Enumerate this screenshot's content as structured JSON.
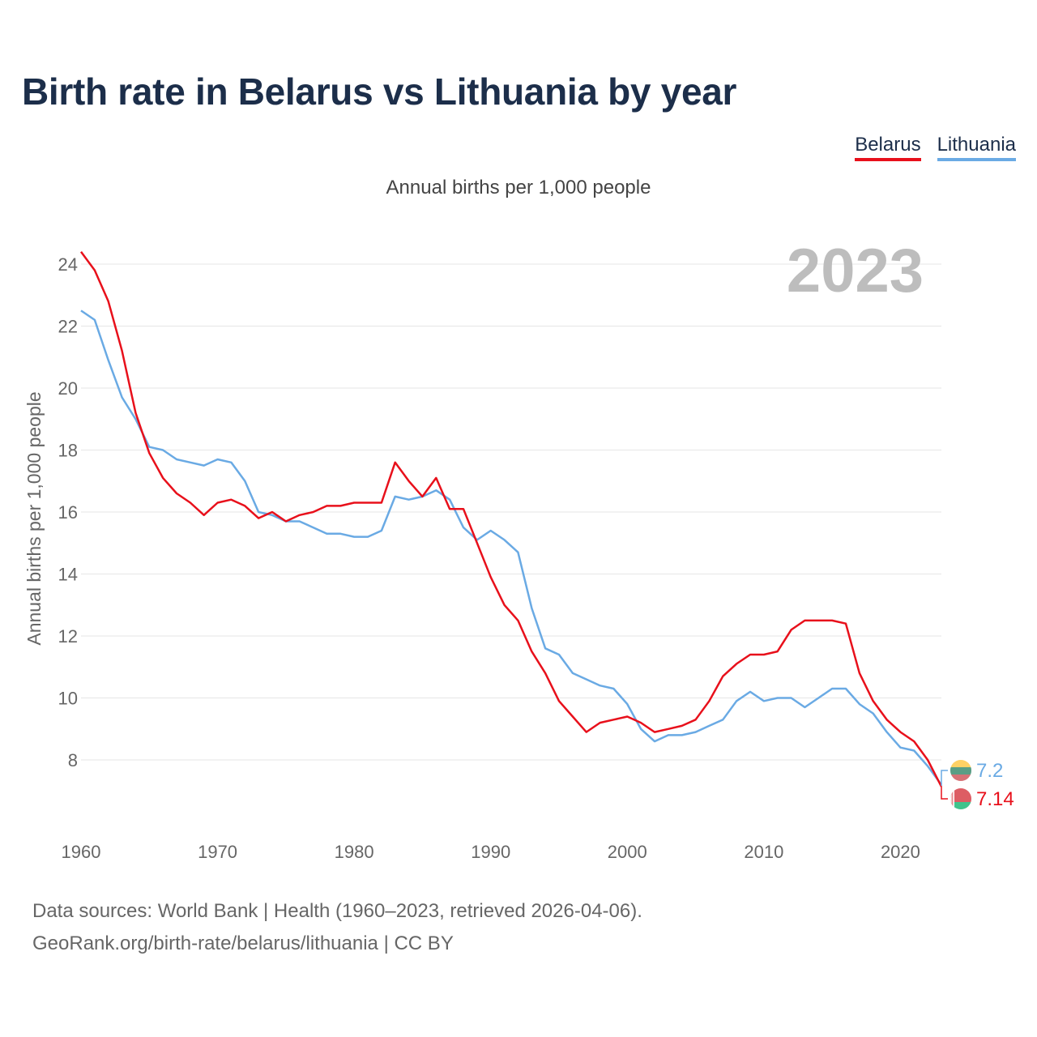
{
  "chart_data": {
    "type": "line",
    "title": "Birth rate in Belarus vs Lithuania by year",
    "subtitle": "Annual births per 1,000 people",
    "xlabel": "",
    "ylabel": "Annual births per 1,000 people",
    "watermark_year": "2023",
    "xlim": [
      1960,
      2023
    ],
    "ylim": [
      6.2,
      25
    ],
    "x_ticks": [
      1960,
      1970,
      1980,
      1990,
      2000,
      2010,
      2020
    ],
    "y_ticks": [
      8,
      10,
      12,
      14,
      16,
      18,
      20,
      22,
      24
    ],
    "grid": true,
    "legend_position": "top-right",
    "x": [
      1960,
      1961,
      1962,
      1963,
      1964,
      1965,
      1966,
      1967,
      1968,
      1969,
      1970,
      1971,
      1972,
      1973,
      1974,
      1975,
      1976,
      1977,
      1978,
      1979,
      1980,
      1981,
      1982,
      1983,
      1984,
      1985,
      1986,
      1987,
      1988,
      1989,
      1990,
      1991,
      1992,
      1993,
      1994,
      1995,
      1996,
      1997,
      1998,
      1999,
      2000,
      2001,
      2002,
      2003,
      2004,
      2005,
      2006,
      2007,
      2008,
      2009,
      2010,
      2011,
      2012,
      2013,
      2014,
      2015,
      2016,
      2017,
      2018,
      2019,
      2020,
      2021,
      2022,
      2023
    ],
    "series": [
      {
        "name": "Belarus",
        "color": "#e8101b",
        "end_label": "7.14",
        "values": [
          24.4,
          23.8,
          22.8,
          21.2,
          19.2,
          17.9,
          17.1,
          16.6,
          16.3,
          15.9,
          16.3,
          16.4,
          16.2,
          15.8,
          16.0,
          15.7,
          15.9,
          16.0,
          16.2,
          16.2,
          16.3,
          16.3,
          16.3,
          17.6,
          17.0,
          16.5,
          17.1,
          16.1,
          16.1,
          15.0,
          13.9,
          13.0,
          12.5,
          11.5,
          10.8,
          9.9,
          9.4,
          8.9,
          9.2,
          9.3,
          9.4,
          9.2,
          8.9,
          9.0,
          9.1,
          9.3,
          9.9,
          10.7,
          11.1,
          11.4,
          11.4,
          11.5,
          12.2,
          12.5,
          12.5,
          12.5,
          12.4,
          10.8,
          9.9,
          9.3,
          8.9,
          8.6,
          8.0,
          7.14
        ]
      },
      {
        "name": "Lithuania",
        "color": "#6aaae4",
        "end_label": "7.2",
        "values": [
          22.5,
          22.2,
          20.9,
          19.7,
          19.0,
          18.1,
          18.0,
          17.7,
          17.6,
          17.5,
          17.7,
          17.6,
          17.0,
          16.0,
          15.9,
          15.7,
          15.7,
          15.5,
          15.3,
          15.3,
          15.2,
          15.2,
          15.4,
          16.5,
          16.4,
          16.5,
          16.7,
          16.4,
          15.5,
          15.1,
          15.4,
          15.1,
          14.7,
          12.9,
          11.6,
          11.4,
          10.8,
          10.6,
          10.4,
          10.3,
          9.8,
          9.0,
          8.6,
          8.8,
          8.8,
          8.9,
          9.1,
          9.3,
          9.9,
          10.2,
          9.9,
          10.0,
          10.0,
          9.7,
          10.0,
          10.3,
          10.3,
          9.8,
          9.5,
          8.9,
          8.4,
          8.3,
          7.8,
          7.2
        ]
      }
    ]
  },
  "source": {
    "line1": "Data sources: World Bank | Health (1960–2023, retrieved 2026-04-06).",
    "line2": "GeoRank.org/birth-rate/belarus/lithuania | CC BY"
  }
}
